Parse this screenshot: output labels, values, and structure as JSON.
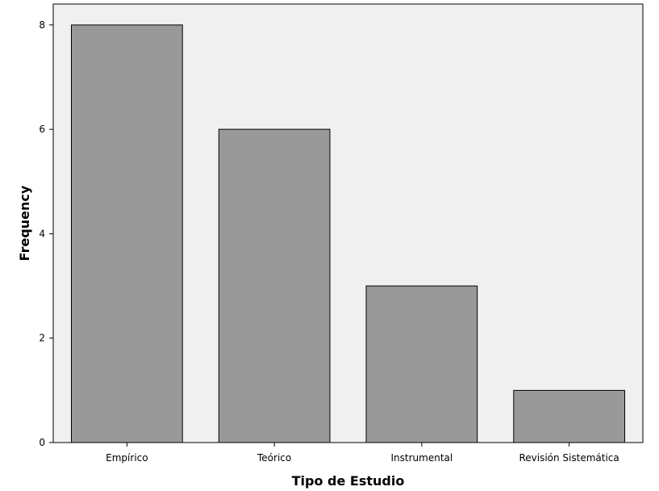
{
  "chart_data": {
    "type": "bar",
    "categories": [
      "Empírico",
      "Teórico",
      "Instrumental",
      "Revisión Sistemática"
    ],
    "values": [
      8,
      6,
      3,
      1
    ],
    "title": "",
    "xlabel": "Tipo de Estudio",
    "ylabel": "Frequency",
    "ylim": [
      0,
      8.4
    ],
    "yticks": [
      "0",
      "2",
      "4",
      "6",
      "8"
    ],
    "grid": false,
    "legend": "none",
    "colors": {
      "bar_fill": "#999999",
      "bar_stroke": "#000000",
      "plot_background": "#f0f0f0",
      "page_background": "#ffffff"
    }
  }
}
